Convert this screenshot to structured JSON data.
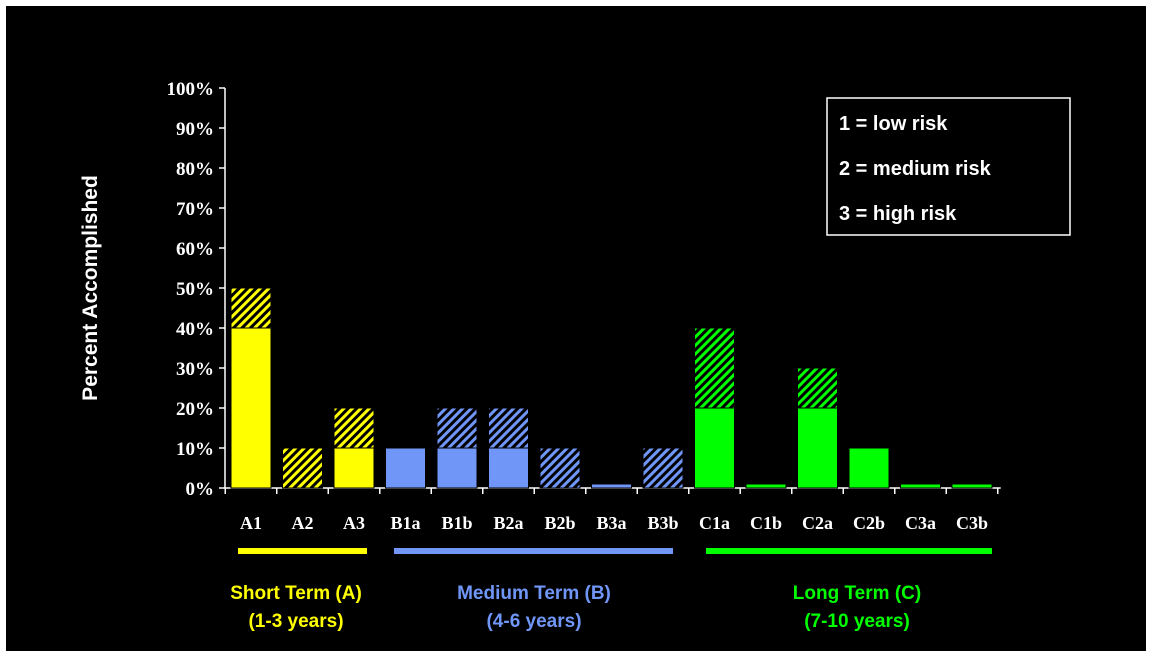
{
  "colors": {
    "background": "#000000",
    "short": "#ffff00",
    "medium": "#7096f8",
    "long": "#00ff00",
    "text": "#ffffff"
  },
  "chart_data": {
    "type": "bar",
    "stacked": true,
    "ylabel": "Percent Accomplished",
    "xlabel": "",
    "ylim": [
      0,
      100
    ],
    "yticks": [
      "0%",
      "10%",
      "20%",
      "30%",
      "40%",
      "50%",
      "60%",
      "70%",
      "80%",
      "90%",
      "100%"
    ],
    "categories": [
      "A1",
      "A2",
      "A3",
      "B1a",
      "B1b",
      "B2a",
      "B2b",
      "B3a",
      "B3b",
      "C1a",
      "C1b",
      "C2a",
      "C2b",
      "C3a",
      "C3b"
    ],
    "category_group": [
      "short",
      "short",
      "short",
      "medium",
      "medium",
      "medium",
      "medium",
      "medium",
      "medium",
      "long",
      "long",
      "long",
      "long",
      "long",
      "long"
    ],
    "series": [
      {
        "pattern": "solid",
        "values": [
          40,
          0,
          10,
          10,
          10,
          10,
          0,
          1,
          0,
          20,
          1,
          20,
          10,
          1,
          1
        ]
      },
      {
        "pattern": "hatched",
        "values": [
          10,
          10,
          10,
          0,
          10,
          10,
          10,
          0,
          10,
          20,
          0,
          10,
          0,
          0,
          0
        ]
      }
    ],
    "legend": {
      "position": "top-right",
      "entries": [
        "1 = low risk",
        "2 = medium risk",
        "3 = high risk"
      ]
    },
    "groups": [
      {
        "key": "short",
        "line1": "Short Term (A)",
        "line2": "(1-3 years)"
      },
      {
        "key": "medium",
        "line1": "Medium Term (B)",
        "line2": "(4-6 years)"
      },
      {
        "key": "long",
        "line1": "Long Term (C)",
        "line2": "(7-10 years)"
      }
    ]
  }
}
